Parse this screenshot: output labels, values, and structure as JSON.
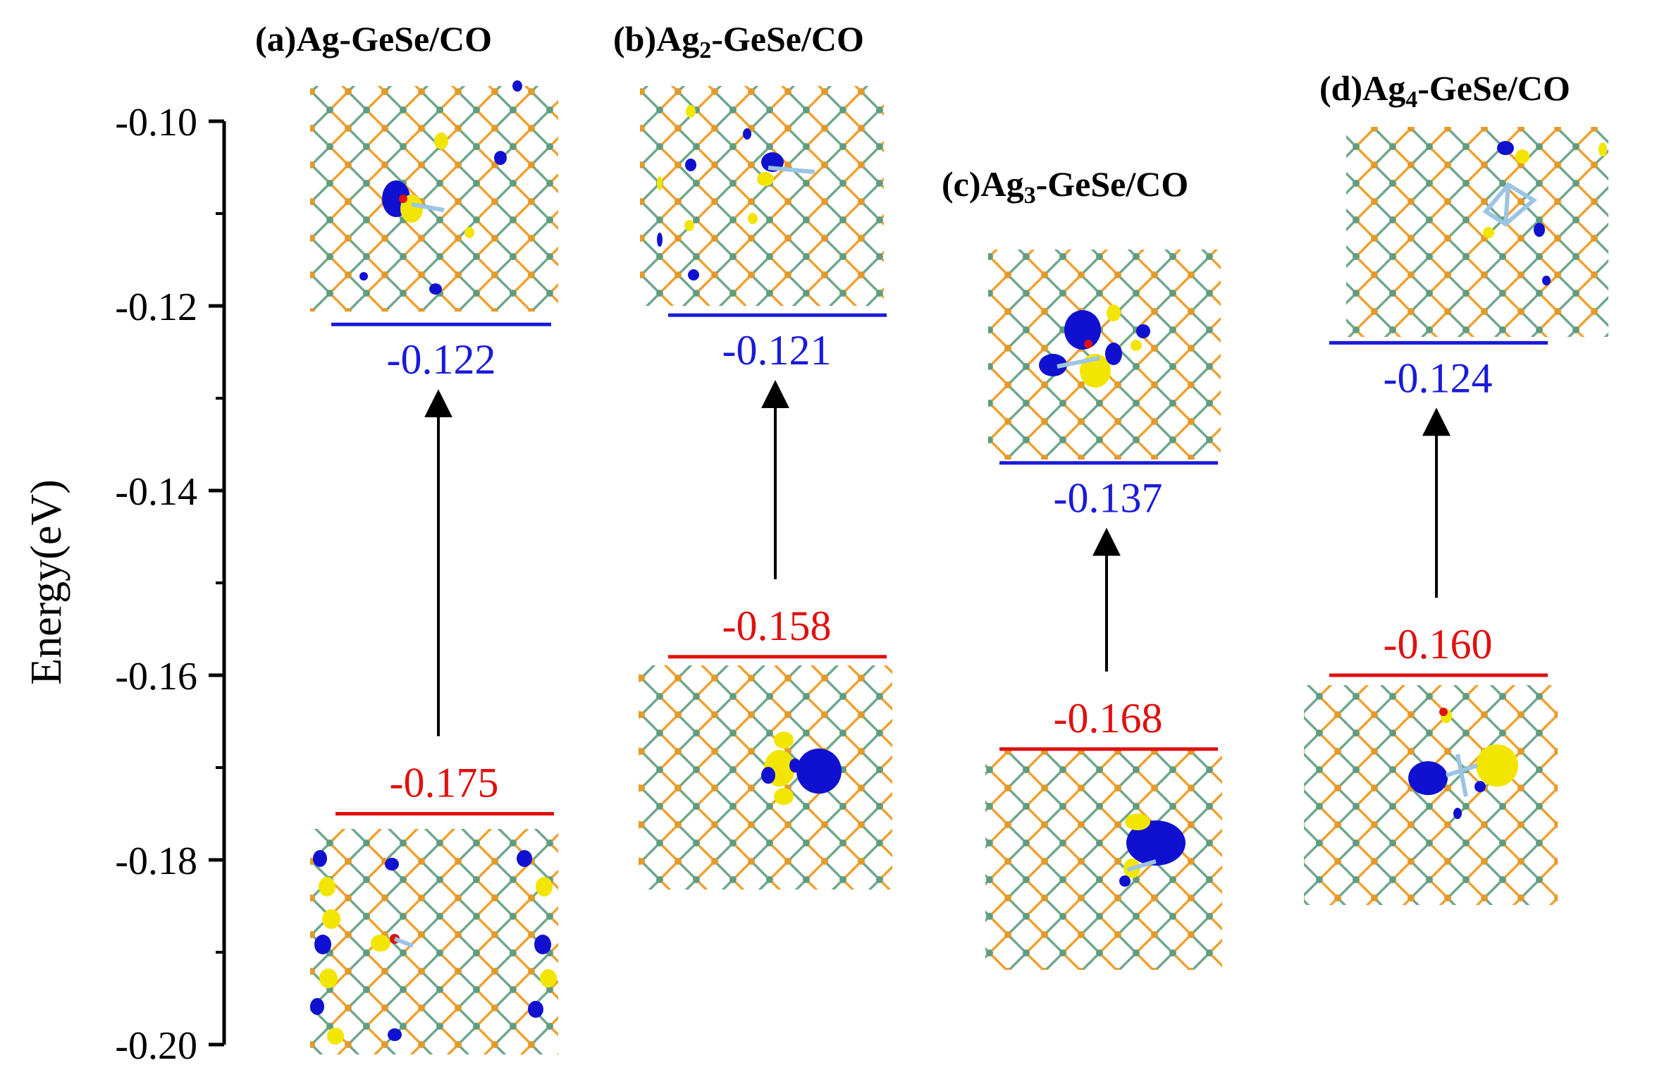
{
  "chart_data": {
    "type": "energy-level-diagram",
    "ylabel": "Energy(eV)",
    "ylim": [
      -0.2,
      -0.1
    ],
    "yticks": [
      "-0.10",
      "-0.12",
      "-0.14",
      "-0.16",
      "-0.18",
      "-0.20"
    ],
    "colors": {
      "lumo": "#1a1adb",
      "homo": "#e01010",
      "ge": "#6fa88c",
      "se": "#f0a030",
      "orbital_pos": "#f2e600",
      "orbital_neg": "#1010d0"
    },
    "panels": [
      {
        "label": "(a)",
        "species": "Ag-GeSe/CO",
        "sub": "",
        "homo": -0.175,
        "lumo": -0.122,
        "homo_text": "-0.175",
        "lumo_text": "-0.122"
      },
      {
        "label": "(b)",
        "species": "Ag",
        "sub": "2",
        "rest": "-GeSe/CO",
        "homo": -0.158,
        "lumo": -0.121,
        "homo_text": "-0.158",
        "lumo_text": "-0.121"
      },
      {
        "label": "(c)",
        "species": "Ag",
        "sub": "3",
        "rest": "-GeSe/CO",
        "homo": -0.168,
        "lumo": -0.137,
        "homo_text": "-0.168",
        "lumo_text": "-0.137"
      },
      {
        "label": "(d)",
        "species": "Ag",
        "sub": "4",
        "rest": "-GeSe/CO",
        "homo": -0.16,
        "lumo": -0.124,
        "homo_text": "-0.160",
        "lumo_text": "-0.124"
      }
    ]
  }
}
